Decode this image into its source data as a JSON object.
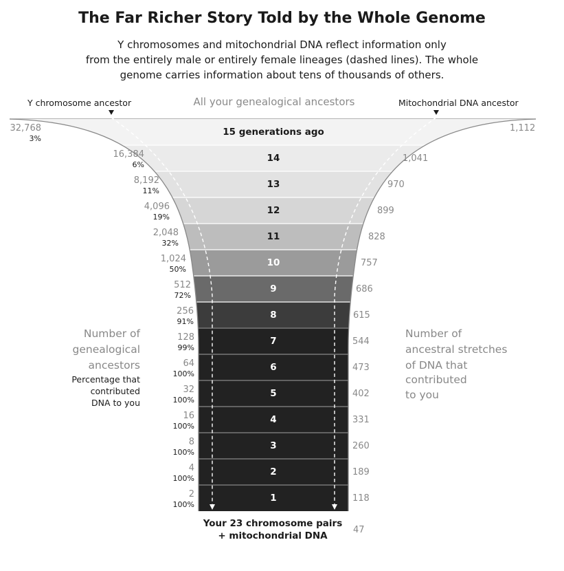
{
  "title": "The Far Richer Story Told by the Whole Genome",
  "subtitle": [
    "Y chromosomes and mitochondrial DNA reflect information only",
    "from the entirely male or entirely female lineages (dashed lines). The whole",
    "genome carries information about tens of thousands of others."
  ],
  "header": {
    "left": "Y chromosome ancestor",
    "center": "All your genealogical ancestors",
    "right": "Mitochondrial DNA ancestor"
  },
  "left_legend": {
    "count_label": [
      "Number of",
      "genealogical",
      "ancestors"
    ],
    "pct_label": [
      "Percentage that",
      "contributed",
      "DNA to you"
    ]
  },
  "right_legend": {
    "label": [
      "Number of",
      "ancestral stretches",
      "of DNA that",
      "contributed",
      "to you"
    ]
  },
  "bottom": {
    "label": [
      "Your 23 chromosome pairs",
      "+ mitochondrial DNA"
    ],
    "stretches": "47"
  },
  "colors": {
    "funnel_outline": "#888888",
    "dark_band": "#222222",
    "text_on_dark": "#ffffff",
    "text_on_light": "#1a1a1a"
  },
  "chart_data": {
    "type": "table",
    "rows": [
      {
        "label": "15 generations ago",
        "ancestors": "32,768",
        "pct": "3%",
        "stretches": "1,112",
        "fill": "#f3f3f3"
      },
      {
        "label": "14",
        "ancestors": "16,384",
        "pct": "6%",
        "stretches": "1,041",
        "fill": "#ebebeb"
      },
      {
        "label": "13",
        "ancestors": "8,192",
        "pct": "11%",
        "stretches": "970",
        "fill": "#e2e2e2"
      },
      {
        "label": "12",
        "ancestors": "4,096",
        "pct": "19%",
        "stretches": "899",
        "fill": "#d6d6d6"
      },
      {
        "label": "11",
        "ancestors": "2,048",
        "pct": "32%",
        "stretches": "828",
        "fill": "#bdbdbd"
      },
      {
        "label": "10",
        "ancestors": "1,024",
        "pct": "50%",
        "stretches": "757",
        "fill": "#9b9b9b"
      },
      {
        "label": "9",
        "ancestors": "512",
        "pct": "72%",
        "stretches": "686",
        "fill": "#6a6a6a"
      },
      {
        "label": "8",
        "ancestors": "256",
        "pct": "91%",
        "stretches": "615",
        "fill": "#3c3c3c"
      },
      {
        "label": "7",
        "ancestors": "128",
        "pct": "99%",
        "stretches": "544",
        "fill": "#222222"
      },
      {
        "label": "6",
        "ancestors": "64",
        "pct": "100%",
        "stretches": "473",
        "fill": "#222222"
      },
      {
        "label": "5",
        "ancestors": "32",
        "pct": "100%",
        "stretches": "402",
        "fill": "#222222"
      },
      {
        "label": "4",
        "ancestors": "16",
        "pct": "100%",
        "stretches": "331",
        "fill": "#222222"
      },
      {
        "label": "3",
        "ancestors": "8",
        "pct": "100%",
        "stretches": "260",
        "fill": "#222222"
      },
      {
        "label": "2",
        "ancestors": "4",
        "pct": "100%",
        "stretches": "189",
        "fill": "#222222"
      },
      {
        "label": "1",
        "ancestors": "2",
        "pct": "100%",
        "stretches": "118",
        "fill": "#222222"
      }
    ]
  }
}
